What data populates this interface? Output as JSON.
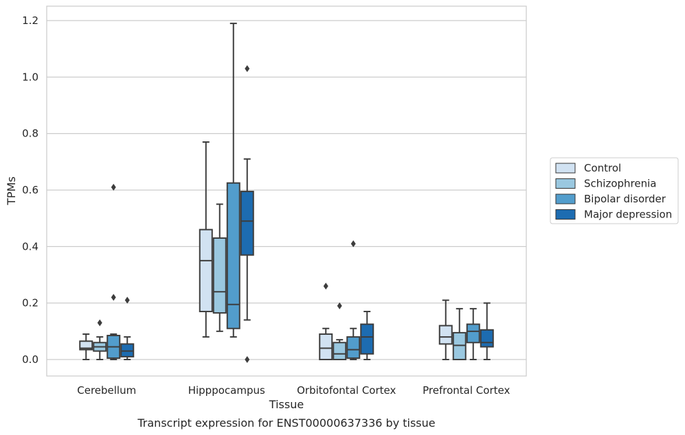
{
  "caption": "Transcript expression for ENST00000637336 by tissue",
  "chart_data": {
    "type": "box",
    "xlabel": "Tissue",
    "ylabel": "TPMs",
    "ylim": [
      -0.06,
      1.25
    ],
    "yticks": [
      "0.0",
      "0.2",
      "0.4",
      "0.6",
      "0.8",
      "1.0",
      "1.2"
    ],
    "categories": [
      "Cerebellum",
      "Hipppocampus",
      "Orbitofontal Cortex",
      "Prefrontal Cortex"
    ],
    "grid": "horizontal",
    "legend_position": "right",
    "series": [
      {
        "name": "Control",
        "color": "#d1e2f2",
        "boxes": [
          {
            "whislo": 0.0,
            "q1": 0.035,
            "med": 0.04,
            "q3": 0.065,
            "whishi": 0.09,
            "fliers": []
          },
          {
            "whislo": 0.08,
            "q1": 0.17,
            "med": 0.35,
            "q3": 0.46,
            "whishi": 0.77,
            "fliers": []
          },
          {
            "whislo": 0.0,
            "q1": 0.0,
            "med": 0.04,
            "q3": 0.09,
            "whishi": 0.11,
            "fliers": [
              0.26
            ]
          },
          {
            "whislo": 0.0,
            "q1": 0.055,
            "med": 0.08,
            "q3": 0.12,
            "whishi": 0.21,
            "fliers": []
          }
        ]
      },
      {
        "name": "Schizophrenia",
        "color": "#9ac8e0",
        "boxes": [
          {
            "whislo": 0.0,
            "q1": 0.03,
            "med": 0.045,
            "q3": 0.06,
            "whishi": 0.08,
            "fliers": [
              0.13
            ]
          },
          {
            "whislo": 0.1,
            "q1": 0.165,
            "med": 0.24,
            "q3": 0.43,
            "whishi": 0.55,
            "fliers": []
          },
          {
            "whislo": 0.0,
            "q1": 0.0,
            "med": 0.02,
            "q3": 0.06,
            "whishi": 0.07,
            "fliers": [
              0.19
            ]
          },
          {
            "whislo": 0.0,
            "q1": 0.0,
            "med": 0.05,
            "q3": 0.095,
            "whishi": 0.18,
            "fliers": []
          }
        ]
      },
      {
        "name": "Bipolar disorder",
        "color": "#529dcc",
        "boxes": [
          {
            "whislo": 0.0,
            "q1": 0.005,
            "med": 0.045,
            "q3": 0.085,
            "whishi": 0.09,
            "fliers": [
              0.61,
              0.22
            ]
          },
          {
            "whislo": 0.08,
            "q1": 0.11,
            "med": 0.195,
            "q3": 0.625,
            "whishi": 1.19,
            "fliers": []
          },
          {
            "whislo": 0.0,
            "q1": 0.005,
            "med": 0.035,
            "q3": 0.08,
            "whishi": 0.11,
            "fliers": [
              0.41
            ]
          },
          {
            "whislo": 0.0,
            "q1": 0.06,
            "med": 0.1,
            "q3": 0.125,
            "whishi": 0.18,
            "fliers": []
          }
        ]
      },
      {
        "name": "Major depression",
        "color": "#1d6cb1",
        "boxes": [
          {
            "whislo": 0.0,
            "q1": 0.01,
            "med": 0.03,
            "q3": 0.055,
            "whishi": 0.08,
            "fliers": [
              0.21
            ]
          },
          {
            "whislo": 0.14,
            "q1": 0.37,
            "med": 0.49,
            "q3": 0.595,
            "whishi": 0.71,
            "fliers": [
              1.03,
              0.0
            ]
          },
          {
            "whislo": 0.0,
            "q1": 0.02,
            "med": 0.08,
            "q3": 0.125,
            "whishi": 0.17,
            "fliers": []
          },
          {
            "whislo": 0.0,
            "q1": 0.045,
            "med": 0.06,
            "q3": 0.105,
            "whishi": 0.2,
            "fliers": []
          }
        ]
      }
    ]
  }
}
